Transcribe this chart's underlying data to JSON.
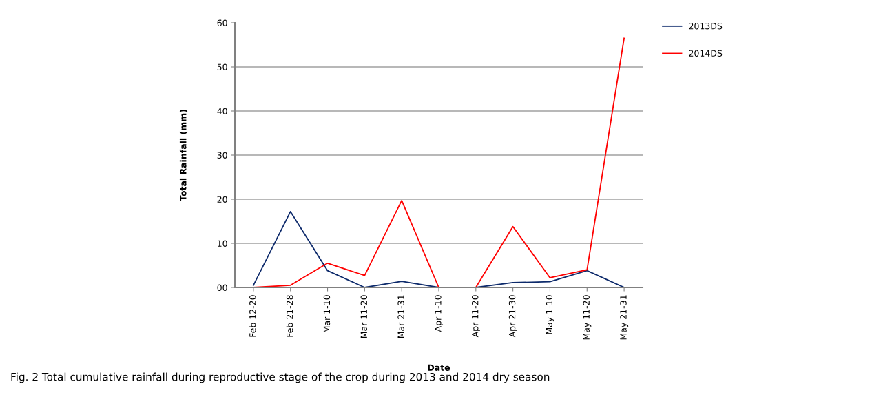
{
  "chart_data": {
    "type": "line",
    "xlabel": "Date",
    "ylabel": "Total Rainfall (mm)",
    "categories": [
      "Feb 12-20",
      "Feb 21-28",
      "Mar 1-10",
      "Mar 11-20",
      "Mar 21-31",
      "Apr 1-10",
      "Apr 11-20",
      "Apr 21-30",
      "May 1-10",
      "May 11-20",
      "May 21-31"
    ],
    "series": [
      {
        "name": "2013DS",
        "color": "#0d2a6b",
        "values": [
          0.5,
          17.2,
          3.8,
          0,
          1.4,
          0,
          0,
          1.1,
          1.3,
          3.8,
          0
        ]
      },
      {
        "name": "2014DS",
        "color": "#ff0000",
        "values": [
          0,
          0.5,
          5.5,
          2.7,
          19.7,
          0,
          0,
          13.8,
          2.2,
          4.0,
          56.5
        ]
      }
    ],
    "ylim": [
      0,
      60
    ],
    "yticks": [
      {
        "value": 0,
        "label": "00"
      },
      10,
      20,
      30,
      40,
      50,
      60
    ],
    "grid": "y",
    "legend": "top right",
    "marker": "none",
    "line_style": "solid",
    "annotations": [
      "Fig. 2 Total cumulative rainfall during reproductive stage of the crop during 2013 and 2014 dry season"
    ]
  }
}
